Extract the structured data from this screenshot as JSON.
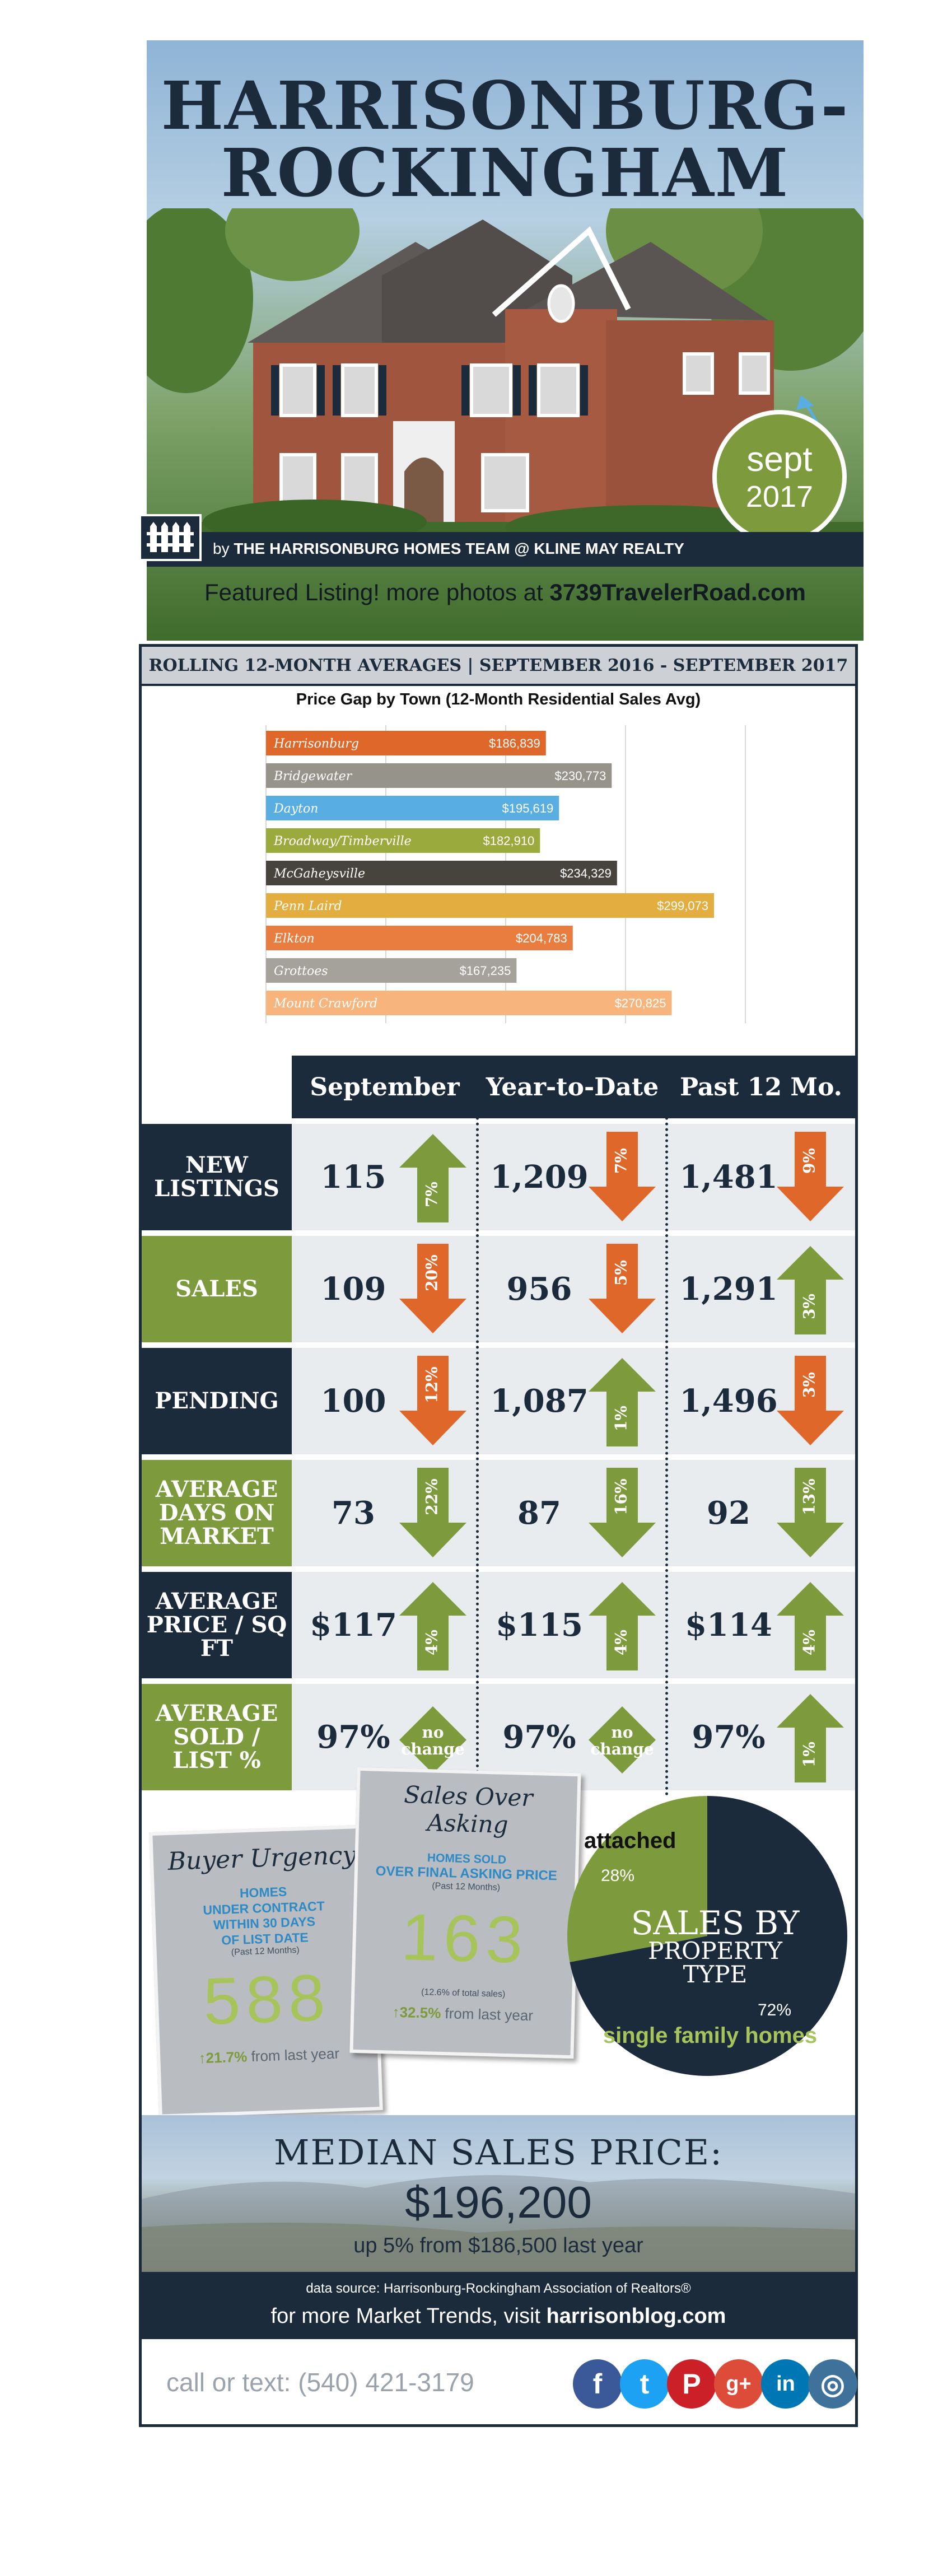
{
  "hero": {
    "title_line1": "HARRISONBURG-",
    "title_line2": "ROCKINGHAM",
    "badge_month": "sept",
    "badge_year": "2017",
    "byline_prefix": "by ",
    "byline_team": "THE HARRISONBURG HOMES TEAM @ KLINE MAY REALTY",
    "featured_prefix": "Featured Listing! more photos at ",
    "featured_address": "3739TravelerRoad.com"
  },
  "rolling_header": "ROLLING 12-MONTH AVERAGES | SEPTEMBER 2016 - SEPTEMBER 2017",
  "chart_data": {
    "type": "bar",
    "orientation": "horizontal",
    "title": "Price Gap by Town (12-Month Residential Sales Avg)",
    "xlim": [
      0,
      320000
    ],
    "grid": true,
    "categories": [
      "Harrisonburg",
      "Bridgewater",
      "Dayton",
      "Broadway/Timberville",
      "McGaheysville",
      "Penn Laird",
      "Elkton",
      "Grottoes",
      "Mount Crawford"
    ],
    "values": [
      186839,
      230773,
      195619,
      182910,
      234329,
      299073,
      204783,
      167235,
      270825
    ],
    "value_labels": [
      "$186,839",
      "$230,773",
      "$195,619",
      "$182,910",
      "$234,329",
      "$299,073",
      "$204,783",
      "$167,235",
      "$270,825"
    ],
    "colors": [
      "#e0672a",
      "#96938a",
      "#58aee2",
      "#9aaa3c",
      "#47443e",
      "#e3ad3f",
      "#e97d40",
      "#a4a29b",
      "#f7b57d"
    ]
  },
  "stats": {
    "columns": [
      "September",
      "Year-to-Date",
      "Past 12 Mo."
    ],
    "rows": [
      {
        "label": "NEW LISTINGS",
        "color": "dark",
        "cells": [
          {
            "value": "115",
            "pct": "7%",
            "dir": "up",
            "color": "green"
          },
          {
            "value": "1,209",
            "pct": "7%",
            "dir": "down",
            "color": "orange"
          },
          {
            "value": "1,481",
            "pct": "9%",
            "dir": "down",
            "color": "orange"
          }
        ]
      },
      {
        "label": "SALES",
        "color": "green",
        "cells": [
          {
            "value": "109",
            "pct": "20%",
            "dir": "down",
            "color": "orange"
          },
          {
            "value": "956",
            "pct": "5%",
            "dir": "down",
            "color": "orange"
          },
          {
            "value": "1,291",
            "pct": "3%",
            "dir": "up",
            "color": "green"
          }
        ]
      },
      {
        "label": "PENDING",
        "color": "dark",
        "cells": [
          {
            "value": "100",
            "pct": "12%",
            "dir": "down",
            "color": "orange"
          },
          {
            "value": "1,087",
            "pct": "1%",
            "dir": "up",
            "color": "green"
          },
          {
            "value": "1,496",
            "pct": "3%",
            "dir": "down",
            "color": "orange"
          }
        ]
      },
      {
        "label": "AVERAGE DAYS ON MARKET",
        "color": "green",
        "cells": [
          {
            "value": "73",
            "pct": "22%",
            "dir": "down",
            "color": "green"
          },
          {
            "value": "87",
            "pct": "16%",
            "dir": "down",
            "color": "green"
          },
          {
            "value": "92",
            "pct": "13%",
            "dir": "down",
            "color": "green"
          }
        ]
      },
      {
        "label": "AVERAGE PRICE / SQ FT",
        "color": "dark",
        "cells": [
          {
            "value": "$117",
            "pct": "4%",
            "dir": "up",
            "color": "green"
          },
          {
            "value": "$115",
            "pct": "4%",
            "dir": "up",
            "color": "green"
          },
          {
            "value": "$114",
            "pct": "4%",
            "dir": "up",
            "color": "green"
          }
        ]
      },
      {
        "label": "AVERAGE SOLD / LIST %",
        "color": "green",
        "cells": [
          {
            "value": "97%",
            "pct": "no change",
            "dir": "flat",
            "color": "green"
          },
          {
            "value": "97%",
            "pct": "no change",
            "dir": "flat",
            "color": "green"
          },
          {
            "value": "97%",
            "pct": "1%",
            "dir": "up",
            "color": "green"
          }
        ]
      }
    ]
  },
  "buyer_urgency": {
    "title": "Buyer Urgency",
    "line1": "HOMES",
    "line2": "UNDER CONTRACT",
    "line3": "WITHIN 30 DAYS",
    "line4": "OF LIST DATE",
    "note": "(Past 12 Months)",
    "number": "588",
    "change": "↑21.7%",
    "change_suffix": " from last year"
  },
  "sales_over_asking": {
    "title": "Sales Over Asking",
    "line1": "HOMES SOLD",
    "line2": "OVER FINAL ASKING PRICE",
    "note": "(Past 12 Months)",
    "number": "163",
    "share": "(12.6% of total sales)",
    "change": "↑32.5%",
    "change_suffix": " from last year"
  },
  "property_type": {
    "title_line1": "SALES BY",
    "title_line2": "PROPERTY",
    "title_line3": "TYPE",
    "attached_label": "attached",
    "attached_pct": "28%",
    "attached_value": 28,
    "single_label": "single family homes",
    "single_pct": "72%",
    "single_value": 72,
    "colors": {
      "attached": "#7d9a3c",
      "single": "#1c2b3b"
    }
  },
  "median": {
    "heading": "MEDIAN SALES PRICE:",
    "value": "$196,200",
    "sub": "up 5% from $186,500 last year"
  },
  "footer": {
    "source": "data source: Harrisonburg-Rockingham Association of Realtors®",
    "trends_prefix": "for more Market Trends, visit ",
    "trends_site": "harrisonblog.com",
    "phone": "call or text: (540) 421-3179",
    "social": [
      {
        "icon": "facebook-icon",
        "glyph": "f",
        "color": "#3b5998"
      },
      {
        "icon": "twitter-icon",
        "glyph": "t",
        "color": "#1da1f2"
      },
      {
        "icon": "pinterest-icon",
        "glyph": "P",
        "color": "#cb2027"
      },
      {
        "icon": "google-plus-icon",
        "glyph": "g+",
        "color": "#dd4b39"
      },
      {
        "icon": "linkedin-icon",
        "glyph": "in",
        "color": "#0077b5"
      },
      {
        "icon": "instagram-icon",
        "glyph": "◎",
        "color": "#3f729b"
      }
    ]
  }
}
